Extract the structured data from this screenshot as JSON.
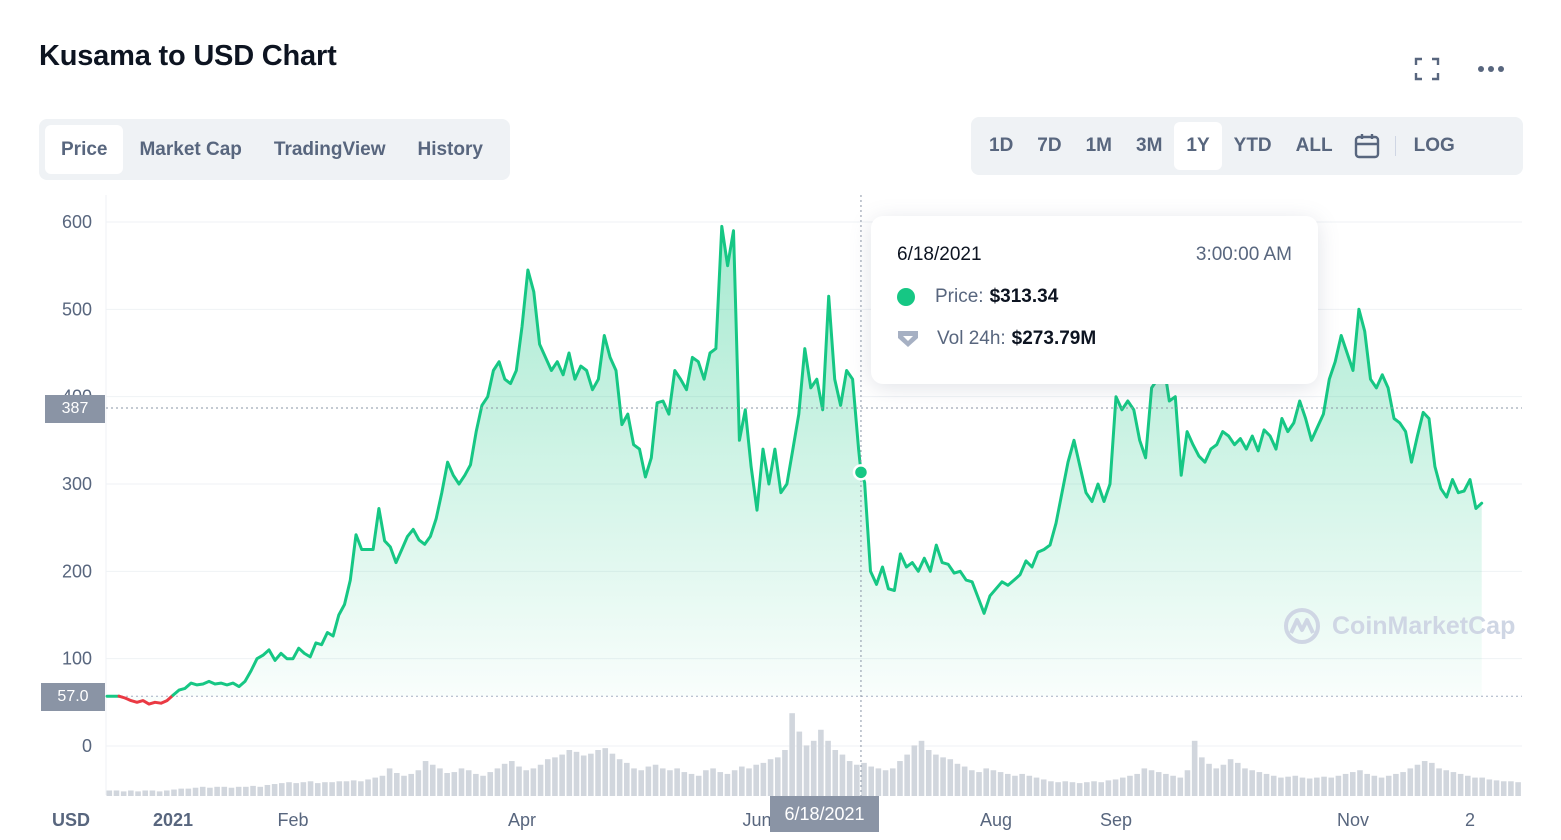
{
  "title": "Kusama to USD Chart",
  "header_icons": [
    "expand-icon",
    "more-icon"
  ],
  "tabs": [
    {
      "label": "Price",
      "active": true
    },
    {
      "label": "Market Cap",
      "active": false
    },
    {
      "label": "TradingView",
      "active": false
    },
    {
      "label": "History",
      "active": false
    }
  ],
  "ranges": [
    {
      "label": "1D",
      "active": false
    },
    {
      "label": "7D",
      "active": false
    },
    {
      "label": "1M",
      "active": false
    },
    {
      "label": "3M",
      "active": false
    },
    {
      "label": "1Y",
      "active": true
    },
    {
      "label": "YTD",
      "active": false
    },
    {
      "label": "ALL",
      "active": false
    }
  ],
  "calendar_icon": "calendar-icon",
  "log_label": "LOG",
  "tooltip": {
    "date": "6/18/2021",
    "time": "3:00:00 AM",
    "price_label": "Price:",
    "price_value": "$313.34",
    "vol_label": "Vol 24h:",
    "vol_value": "$273.79M"
  },
  "crosshair": {
    "y_label": "387",
    "y_value": 387,
    "x_label": "6/18/2021"
  },
  "baseline": {
    "label": "57.0",
    "value": 57
  },
  "watermark": "CoinMarketCap",
  "colors": {
    "up": "#16c784",
    "down": "#ea3943",
    "axis_text": "#58667e",
    "grid": "#eff2f5",
    "volume": "#d1d6dd"
  },
  "chart_data": {
    "type": "area",
    "currency_label": "USD",
    "y_ticks": [
      0,
      100,
      200,
      300,
      400,
      500,
      600
    ],
    "ylim": [
      0,
      600
    ],
    "x_ticks": [
      {
        "label": "2021",
        "x": 0.0
      },
      {
        "label": "Feb",
        "x": 1.0
      },
      {
        "label": "Apr",
        "x": 3.0
      },
      {
        "label": "Jun",
        "x": 5.0
      },
      {
        "label": "Aug",
        "x": 7.0
      },
      {
        "label": "Sep",
        "x": 8.0
      },
      {
        "label": "Nov",
        "x": 10.0
      },
      {
        "label": "2",
        "x": 11.0
      }
    ],
    "xlim": [
      -0.55,
      11.4
    ],
    "series": [
      {
        "values": [
          [
            -0.55,
            57
          ],
          [
            -0.45,
            57
          ],
          [
            -0.4,
            55
          ],
          [
            -0.35,
            52
          ],
          [
            -0.3,
            50
          ],
          [
            -0.25,
            52
          ],
          [
            -0.2,
            48
          ],
          [
            -0.15,
            50
          ],
          [
            -0.1,
            49
          ],
          [
            -0.05,
            52
          ],
          [
            0.0,
            58
          ],
          [
            0.05,
            64
          ],
          [
            0.1,
            66
          ],
          [
            0.15,
            72
          ],
          [
            0.2,
            70
          ],
          [
            0.25,
            71
          ],
          [
            0.3,
            74
          ],
          [
            0.35,
            71
          ],
          [
            0.4,
            72
          ],
          [
            0.45,
            70
          ],
          [
            0.5,
            72
          ],
          [
            0.55,
            68
          ],
          [
            0.6,
            74
          ],
          [
            0.65,
            86
          ],
          [
            0.7,
            100
          ],
          [
            0.75,
            104
          ],
          [
            0.8,
            110
          ],
          [
            0.85,
            98
          ],
          [
            0.9,
            106
          ],
          [
            0.95,
            100
          ],
          [
            1.0,
            100
          ],
          [
            1.05,
            112
          ],
          [
            1.1,
            106
          ],
          [
            1.15,
            102
          ],
          [
            1.2,
            118
          ],
          [
            1.25,
            116
          ],
          [
            1.3,
            130
          ],
          [
            1.35,
            126
          ],
          [
            1.4,
            150
          ],
          [
            1.45,
            162
          ],
          [
            1.5,
            190
          ],
          [
            1.55,
            242
          ],
          [
            1.6,
            225
          ],
          [
            1.65,
            225
          ],
          [
            1.7,
            225
          ],
          [
            1.75,
            272
          ],
          [
            1.8,
            235
          ],
          [
            1.85,
            228
          ],
          [
            1.9,
            210
          ],
          [
            1.95,
            225
          ],
          [
            2.0,
            240
          ],
          [
            2.05,
            248
          ],
          [
            2.1,
            236
          ],
          [
            2.15,
            231
          ],
          [
            2.2,
            240
          ],
          [
            2.25,
            260
          ],
          [
            2.3,
            290
          ],
          [
            2.35,
            325
          ],
          [
            2.4,
            310
          ],
          [
            2.45,
            300
          ],
          [
            2.5,
            310
          ],
          [
            2.55,
            322
          ],
          [
            2.6,
            360
          ],
          [
            2.65,
            390
          ],
          [
            2.7,
            400
          ],
          [
            2.75,
            430
          ],
          [
            2.8,
            440
          ],
          [
            2.85,
            420
          ],
          [
            2.9,
            415
          ],
          [
            2.95,
            430
          ],
          [
            3.0,
            480
          ],
          [
            3.05,
            545
          ],
          [
            3.1,
            520
          ],
          [
            3.15,
            460
          ],
          [
            3.2,
            445
          ],
          [
            3.25,
            430
          ],
          [
            3.3,
            440
          ],
          [
            3.35,
            425
          ],
          [
            3.4,
            450
          ],
          [
            3.45,
            420
          ],
          [
            3.5,
            435
          ],
          [
            3.55,
            430
          ],
          [
            3.6,
            408
          ],
          [
            3.65,
            420
          ],
          [
            3.7,
            470
          ],
          [
            3.75,
            445
          ],
          [
            3.8,
            430
          ],
          [
            3.85,
            368
          ],
          [
            3.9,
            380
          ],
          [
            3.95,
            345
          ],
          [
            4.0,
            340
          ],
          [
            4.05,
            308
          ],
          [
            4.1,
            330
          ],
          [
            4.15,
            393
          ],
          [
            4.2,
            395
          ],
          [
            4.25,
            380
          ],
          [
            4.3,
            430
          ],
          [
            4.35,
            420
          ],
          [
            4.4,
            408
          ],
          [
            4.45,
            445
          ],
          [
            4.5,
            440
          ],
          [
            4.55,
            420
          ],
          [
            4.6,
            450
          ],
          [
            4.65,
            455
          ],
          [
            4.7,
            595
          ],
          [
            4.75,
            550
          ],
          [
            4.8,
            590
          ],
          [
            4.85,
            350
          ],
          [
            4.9,
            385
          ],
          [
            4.95,
            320
          ],
          [
            5.0,
            270
          ],
          [
            5.05,
            340
          ],
          [
            5.1,
            300
          ],
          [
            5.15,
            340
          ],
          [
            5.2,
            290
          ],
          [
            5.25,
            300
          ],
          [
            5.3,
            340
          ],
          [
            5.35,
            380
          ],
          [
            5.4,
            455
          ],
          [
            5.45,
            410
          ],
          [
            5.5,
            420
          ],
          [
            5.55,
            385
          ],
          [
            5.6,
            515
          ],
          [
            5.65,
            420
          ],
          [
            5.7,
            390
          ],
          [
            5.75,
            430
          ],
          [
            5.8,
            420
          ],
          [
            5.85,
            340
          ],
          [
            5.87,
            313
          ],
          [
            5.9,
            302
          ],
          [
            5.95,
            200
          ],
          [
            6.0,
            185
          ],
          [
            6.05,
            205
          ],
          [
            6.1,
            180
          ],
          [
            6.15,
            178
          ],
          [
            6.2,
            220
          ],
          [
            6.25,
            205
          ],
          [
            6.3,
            210
          ],
          [
            6.35,
            200
          ],
          [
            6.4,
            215
          ],
          [
            6.45,
            200
          ],
          [
            6.5,
            230
          ],
          [
            6.55,
            210
          ],
          [
            6.6,
            208
          ],
          [
            6.65,
            198
          ],
          [
            6.7,
            200
          ],
          [
            6.75,
            190
          ],
          [
            6.8,
            188
          ],
          [
            6.85,
            170
          ],
          [
            6.9,
            152
          ],
          [
            6.95,
            172
          ],
          [
            7.0,
            180
          ],
          [
            7.05,
            188
          ],
          [
            7.1,
            184
          ],
          [
            7.15,
            190
          ],
          [
            7.2,
            196
          ],
          [
            7.25,
            212
          ],
          [
            7.3,
            205
          ],
          [
            7.35,
            222
          ],
          [
            7.4,
            225
          ],
          [
            7.45,
            230
          ],
          [
            7.5,
            255
          ],
          [
            7.55,
            290
          ],
          [
            7.6,
            325
          ],
          [
            7.65,
            350
          ],
          [
            7.7,
            320
          ],
          [
            7.75,
            290
          ],
          [
            7.8,
            280
          ],
          [
            7.85,
            300
          ],
          [
            7.9,
            280
          ],
          [
            7.95,
            300
          ],
          [
            8.0,
            400
          ],
          [
            8.05,
            385
          ],
          [
            8.1,
            395
          ],
          [
            8.15,
            385
          ],
          [
            8.2,
            350
          ],
          [
            8.25,
            330
          ],
          [
            8.3,
            410
          ],
          [
            8.35,
            420
          ],
          [
            8.4,
            440
          ],
          [
            8.45,
            395
          ],
          [
            8.5,
            400
          ],
          [
            8.55,
            310
          ],
          [
            8.6,
            360
          ],
          [
            8.65,
            345
          ],
          [
            8.7,
            332
          ],
          [
            8.75,
            325
          ],
          [
            8.8,
            340
          ],
          [
            8.85,
            345
          ],
          [
            8.9,
            360
          ],
          [
            8.95,
            355
          ],
          [
            9.0,
            345
          ],
          [
            9.05,
            352
          ],
          [
            9.1,
            340
          ],
          [
            9.15,
            355
          ],
          [
            9.2,
            338
          ],
          [
            9.25,
            362
          ],
          [
            9.3,
            355
          ],
          [
            9.35,
            340
          ],
          [
            9.4,
            375
          ],
          [
            9.45,
            360
          ],
          [
            9.5,
            370
          ],
          [
            9.55,
            395
          ],
          [
            9.6,
            375
          ],
          [
            9.65,
            350
          ],
          [
            9.7,
            365
          ],
          [
            9.75,
            380
          ],
          [
            9.8,
            420
          ],
          [
            9.85,
            440
          ],
          [
            9.9,
            470
          ],
          [
            9.95,
            450
          ],
          [
            10.0,
            430
          ],
          [
            10.05,
            500
          ],
          [
            10.1,
            475
          ],
          [
            10.15,
            420
          ],
          [
            10.2,
            410
          ],
          [
            10.25,
            425
          ],
          [
            10.3,
            410
          ],
          [
            10.35,
            375
          ],
          [
            10.4,
            370
          ],
          [
            10.45,
            360
          ],
          [
            10.5,
            325
          ],
          [
            10.55,
            355
          ],
          [
            10.6,
            382
          ],
          [
            10.65,
            375
          ],
          [
            10.7,
            320
          ],
          [
            10.75,
            295
          ],
          [
            10.8,
            285
          ],
          [
            10.85,
            305
          ],
          [
            10.9,
            290
          ],
          [
            10.95,
            292
          ],
          [
            11.0,
            305
          ],
          [
            11.05,
            272
          ],
          [
            11.1,
            278
          ]
        ]
      }
    ],
    "volume_note": "volume bars shown beneath price (relative heights, unlabeled)",
    "volume": [
      0.06,
      0.06,
      0.05,
      0.06,
      0.05,
      0.06,
      0.06,
      0.05,
      0.06,
      0.07,
      0.08,
      0.08,
      0.09,
      0.1,
      0.09,
      0.1,
      0.1,
      0.09,
      0.1,
      0.1,
      0.11,
      0.1,
      0.12,
      0.13,
      0.14,
      0.15,
      0.14,
      0.15,
      0.16,
      0.14,
      0.15,
      0.15,
      0.16,
      0.16,
      0.17,
      0.16,
      0.18,
      0.2,
      0.22,
      0.3,
      0.25,
      0.22,
      0.24,
      0.28,
      0.38,
      0.34,
      0.3,
      0.25,
      0.26,
      0.3,
      0.28,
      0.24,
      0.22,
      0.26,
      0.3,
      0.35,
      0.38,
      0.32,
      0.28,
      0.3,
      0.34,
      0.4,
      0.42,
      0.45,
      0.5,
      0.48,
      0.44,
      0.46,
      0.5,
      0.52,
      0.46,
      0.4,
      0.36,
      0.3,
      0.28,
      0.32,
      0.34,
      0.3,
      0.28,
      0.3,
      0.26,
      0.24,
      0.22,
      0.28,
      0.3,
      0.26,
      0.24,
      0.28,
      0.32,
      0.3,
      0.34,
      0.36,
      0.4,
      0.42,
      0.5,
      0.9,
      0.7,
      0.55,
      0.6,
      0.72,
      0.6,
      0.5,
      0.45,
      0.38,
      0.34,
      0.36,
      0.32,
      0.3,
      0.28,
      0.3,
      0.38,
      0.45,
      0.55,
      0.6,
      0.5,
      0.45,
      0.42,
      0.4,
      0.35,
      0.32,
      0.28,
      0.26,
      0.3,
      0.28,
      0.26,
      0.24,
      0.22,
      0.24,
      0.22,
      0.2,
      0.18,
      0.16,
      0.15,
      0.16,
      0.15,
      0.14,
      0.15,
      0.16,
      0.15,
      0.17,
      0.18,
      0.2,
      0.22,
      0.24,
      0.3,
      0.28,
      0.26,
      0.24,
      0.22,
      0.2,
      0.28,
      0.6,
      0.42,
      0.35,
      0.3,
      0.34,
      0.4,
      0.36,
      0.3,
      0.28,
      0.26,
      0.24,
      0.22,
      0.2,
      0.21,
      0.22,
      0.2,
      0.19,
      0.2,
      0.21,
      0.2,
      0.22,
      0.24,
      0.26,
      0.28,
      0.24,
      0.22,
      0.2,
      0.22,
      0.24,
      0.26,
      0.3,
      0.34,
      0.38,
      0.36,
      0.3,
      0.28,
      0.26,
      0.24,
      0.22,
      0.2,
      0.2,
      0.18,
      0.17,
      0.16,
      0.16,
      0.15
    ]
  }
}
